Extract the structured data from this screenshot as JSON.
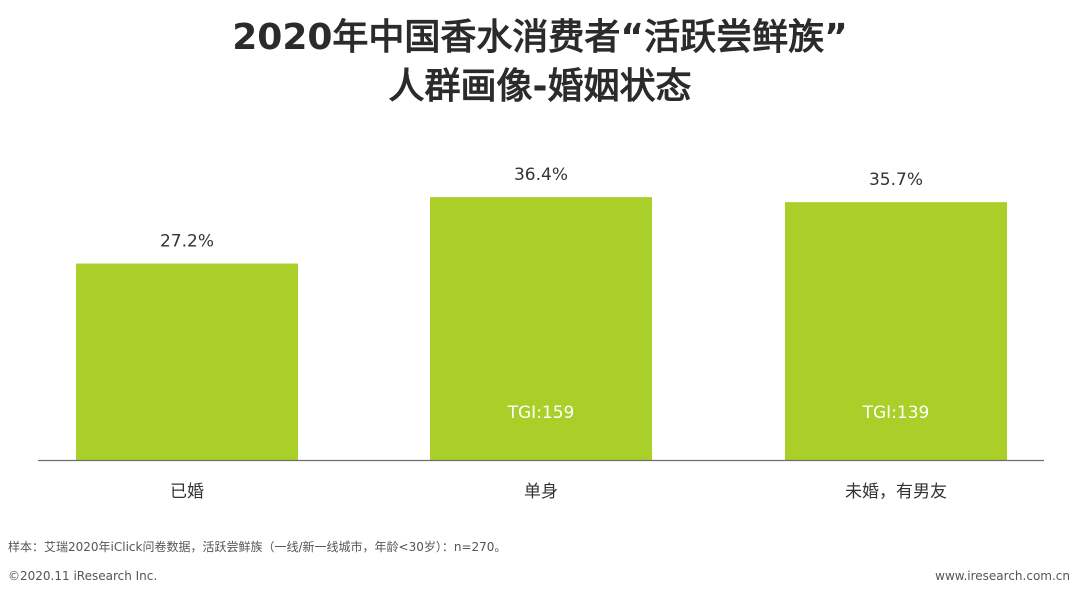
{
  "header": {
    "title_line1": "2020年中国香水消费者“活跃尝鲜族”",
    "title_line2": "人群画像-婚姻状态"
  },
  "chart_data": {
    "type": "bar",
    "categories": [
      "已婚",
      "单身",
      "未婚，有男友"
    ],
    "values": [
      27.2,
      36.4,
      35.7
    ],
    "value_labels": [
      "27.2%",
      "36.4%",
      "35.7%"
    ],
    "inner_labels": [
      "",
      "TGI:159",
      "TGI:139"
    ],
    "unit": "%",
    "ylim": [
      0,
      45
    ],
    "grid": false,
    "bar_color": "#a9cf28",
    "legend": "none"
  },
  "footer": {
    "note": "样本：艾瑞2020年iClick问卷数据，活跃尝鲜族（一线/新一线城市，年龄<30岁）：n=270。",
    "copyright": "©2020.11 iResearch Inc.",
    "website": "www.iresearch.com.cn"
  }
}
